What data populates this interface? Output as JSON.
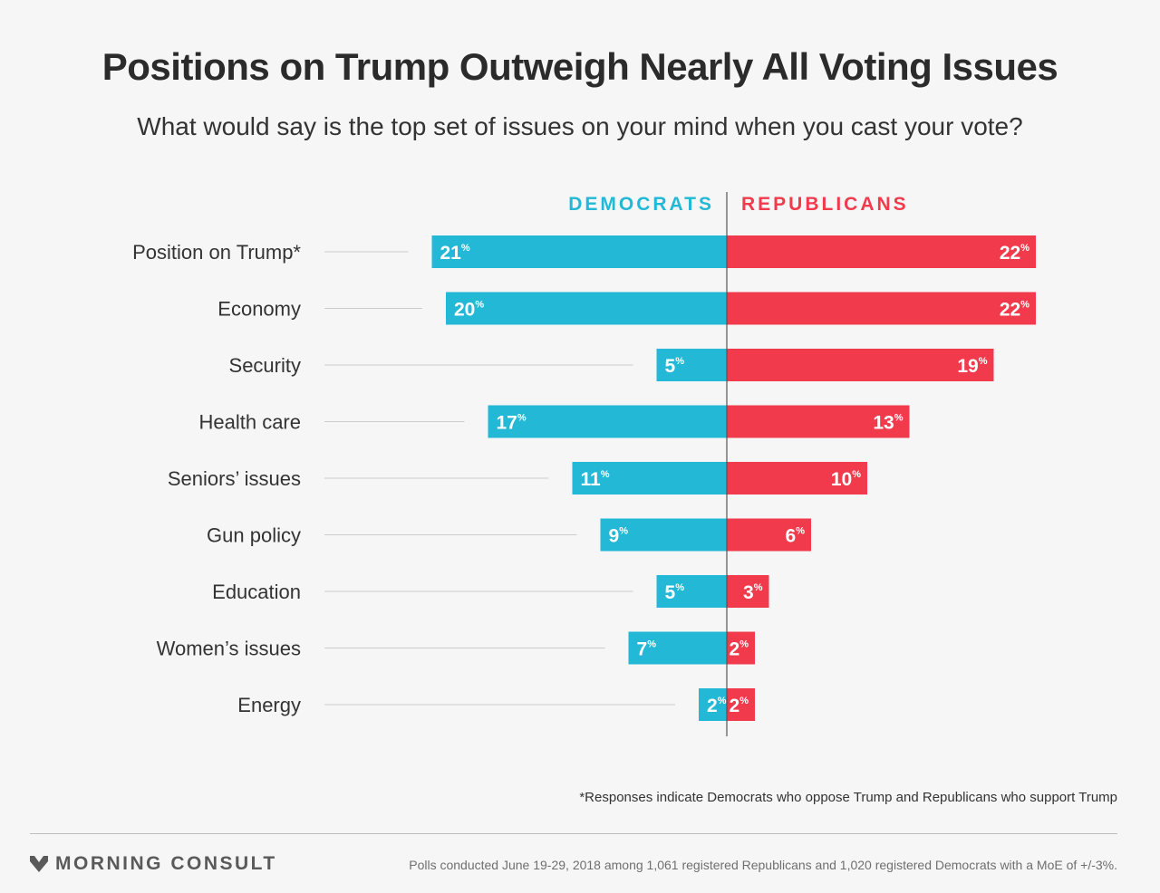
{
  "header": {
    "title": "Positions on Trump Outweigh Nearly All Voting Issues",
    "subtitle": "What would say is the top set of issues on your mind when you cast your vote?"
  },
  "colors": {
    "democrats": "#22b8d6",
    "republicans": "#f23a4d",
    "leader_line": "#cccccc",
    "axis": "#555555"
  },
  "chart_data": {
    "type": "bar",
    "orientation": "horizontal-diverging",
    "value_suffix": "%",
    "categories": [
      "Position on Trump*",
      "Economy",
      "Security",
      "Health care",
      "Seniors’ issues",
      "Gun policy",
      "Education",
      "Women’s issues",
      "Energy"
    ],
    "series": [
      {
        "name": "DEMOCRATS",
        "values": [
          21,
          20,
          5,
          17,
          11,
          9,
          5,
          7,
          2
        ]
      },
      {
        "name": "REPUBLICANS",
        "values": [
          22,
          22,
          19,
          13,
          10,
          6,
          3,
          2,
          2
        ]
      }
    ],
    "legend": "top-center"
  },
  "footer": {
    "footnote": "*Responses indicate Democrats who oppose Trump and Republicans who support Trump",
    "brand": "MORNING CONSULT",
    "logo_icon": "morning-consult-chevron-icon",
    "source": "Polls conducted June 19-29, 2018 among 1,061 registered Republicans and 1,020 registered Democrats with a MoE of +/-3%."
  }
}
